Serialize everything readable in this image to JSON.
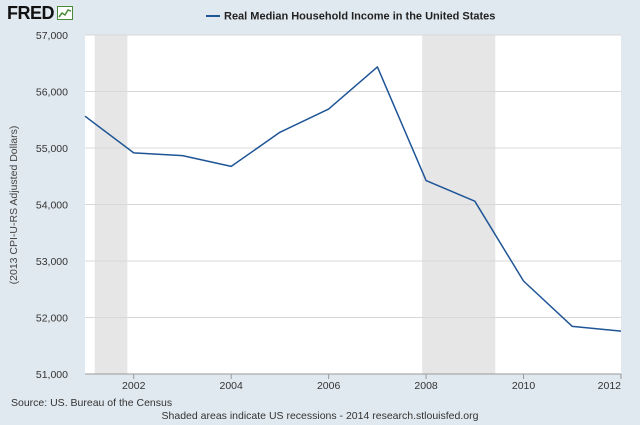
{
  "logo": {
    "text": "FRED",
    "icon": "trend-line-icon"
  },
  "chart_data": {
    "type": "line",
    "title": "Real Median Household Income in the United States",
    "ylabel": "(2013 CPI-U-RS Adjusted Dollars)",
    "xlabel": "",
    "xlim": [
      2001,
      2012
    ],
    "ylim": [
      51000,
      57000
    ],
    "x_ticks": [
      2002,
      2004,
      2006,
      2008,
      2010,
      2012
    ],
    "y_ticks": [
      51000,
      52000,
      53000,
      54000,
      55000,
      56000,
      57000
    ],
    "y_tick_labels": [
      "51,000",
      "52,000",
      "53,000",
      "54,000",
      "55,000",
      "56,000",
      "57,000"
    ],
    "grid": "horizontal",
    "legend_position": "top-center",
    "series": [
      {
        "name": "Real Median Household Income in the United States",
        "color": "#1f5596",
        "x": [
          2001,
          2002,
          2003,
          2004,
          2005,
          2006,
          2007,
          2008,
          2009,
          2010,
          2011,
          2012
        ],
        "values": [
          55562,
          54913,
          54865,
          54674,
          55278,
          55689,
          56436,
          54423,
          54059,
          52646,
          51842,
          51759
        ]
      }
    ],
    "recessions": [
      {
        "start": 2001.2,
        "end": 2001.87
      },
      {
        "start": 2007.92,
        "end": 2009.42
      }
    ],
    "recession_color": "#e6e6e6"
  },
  "footer": {
    "source": "Source: US. Bureau of the Census",
    "note": "Shaded areas indicate US recessions - 2014 research.stlouisfed.org"
  },
  "colors": {
    "background": "#e1e9f0",
    "plot_background": "#ffffff",
    "line": "#1f5596"
  }
}
